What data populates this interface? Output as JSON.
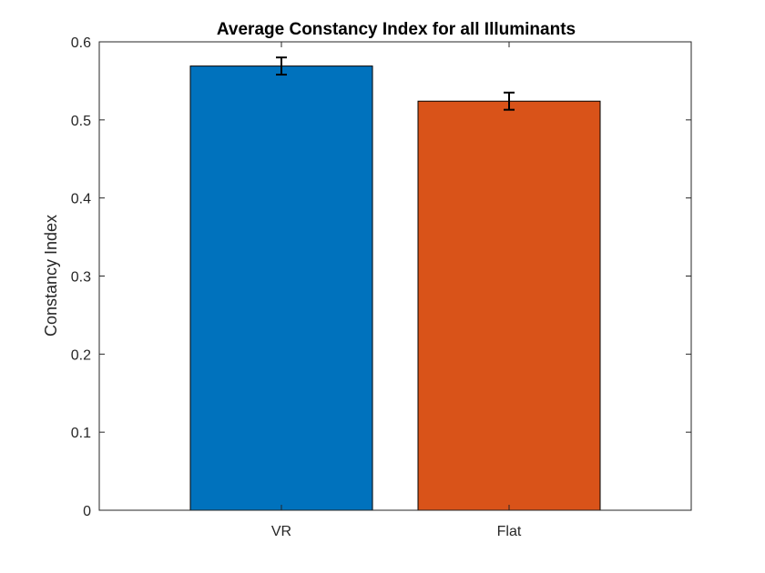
{
  "chart_data": {
    "type": "bar",
    "title": "Average Constancy Index for all Illuminants",
    "xlabel": "",
    "ylabel": "Constancy Index",
    "categories": [
      "VR",
      "Flat"
    ],
    "values": [
      0.569,
      0.524
    ],
    "error": [
      0.011,
      0.011
    ],
    "colors": [
      "#0072BD",
      "#D95319"
    ],
    "ylim": [
      0,
      0.6
    ],
    "yticks": [
      "0",
      "0.1",
      "0.2",
      "0.3",
      "0.4",
      "0.5",
      "0.6"
    ],
    "xlim": [
      0.2,
      2.8
    ],
    "grid": false,
    "legend": "none"
  }
}
